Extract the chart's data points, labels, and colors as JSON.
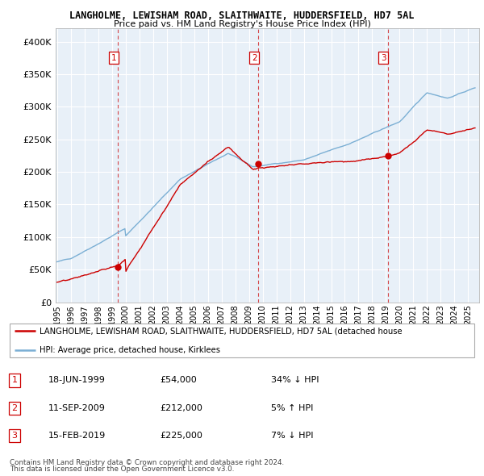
{
  "title1": "LANGHOLME, LEWISHAM ROAD, SLAITHWAITE, HUDDERSFIELD, HD7 5AL",
  "title2": "Price paid vs. HM Land Registry's House Price Index (HPI)",
  "sale_dates_decimal": [
    1999.46,
    2009.69,
    2019.12
  ],
  "sale_prices": [
    54000,
    212000,
    225000
  ],
  "sale_labels": [
    "1",
    "2",
    "3"
  ],
  "hpi_color": "#7bafd4",
  "sale_color": "#cc0000",
  "bg_color": "#e8f0f8",
  "legend_label_red": "LANGHOLME, LEWISHAM ROAD, SLAITHWAITE, HUDDERSFIELD, HD7 5AL (detached house",
  "legend_label_blue": "HPI: Average price, detached house, Kirklees",
  "table_rows": [
    [
      "1",
      "18-JUN-1999",
      "£54,000",
      "34% ↓ HPI"
    ],
    [
      "2",
      "11-SEP-2009",
      "£212,000",
      "5% ↑ HPI"
    ],
    [
      "3",
      "15-FEB-2019",
      "£225,000",
      "7% ↓ HPI"
    ]
  ],
  "footnote1": "Contains HM Land Registry data © Crown copyright and database right 2024.",
  "footnote2": "This data is licensed under the Open Government Licence v3.0.",
  "ylim": [
    0,
    420000
  ],
  "yticks": [
    0,
    50000,
    100000,
    150000,
    200000,
    250000,
    300000,
    350000,
    400000
  ],
  "ytick_labels": [
    "£0",
    "£50K",
    "£100K",
    "£150K",
    "£200K",
    "£250K",
    "£300K",
    "£350K",
    "£400K"
  ],
  "xmin": 1994.9,
  "xmax": 2025.8
}
